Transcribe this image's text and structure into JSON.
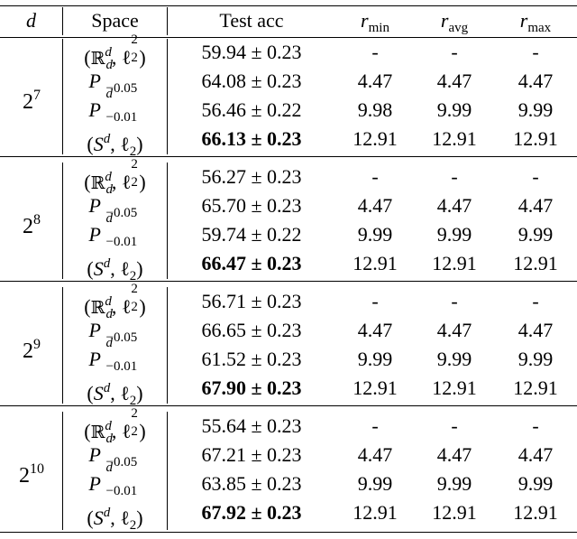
{
  "header": {
    "d": "d",
    "space": "Space",
    "test_acc": "Test acc",
    "r_min": "r",
    "r_min_sub": "min",
    "r_avg": "r",
    "r_avg_sub": "avg",
    "r_max": "r",
    "r_max_sub": "max"
  },
  "spaces": {
    "euclid_open": "(",
    "euclid_R": "ℝ",
    "euclid_d": "d",
    "euclid_sep": ", ℓ",
    "euclid_2": "2",
    "euclid_sq": "2",
    "euclid_close": ")",
    "P": "P",
    "P_sup": "d",
    "P_sub_a": "−0.05",
    "P_sub_b": "−0.01",
    "S_open": "(",
    "S": "S",
    "S_sup": "d",
    "S_sep": ", ℓ",
    "S_sub": "2",
    "S_close": ")"
  },
  "groups": [
    {
      "d_base": "2",
      "d_exp": "7",
      "rows": [
        {
          "acc": "59.94 ± 0.23",
          "rmin": "-",
          "ravg": "-",
          "rmax": "-",
          "bold": false
        },
        {
          "acc": "64.08 ± 0.23",
          "rmin": "4.47",
          "ravg": "4.47",
          "rmax": "4.47",
          "bold": false
        },
        {
          "acc": "56.46 ± 0.22",
          "rmin": "9.98",
          "ravg": "9.99",
          "rmax": "9.99",
          "bold": false
        },
        {
          "acc": "66.13 ± 0.23",
          "rmin": "12.91",
          "ravg": "12.91",
          "rmax": "12.91",
          "bold": true
        }
      ]
    },
    {
      "d_base": "2",
      "d_exp": "8",
      "rows": [
        {
          "acc": "56.27 ± 0.23",
          "rmin": "-",
          "ravg": "-",
          "rmax": "-",
          "bold": false
        },
        {
          "acc": "65.70 ± 0.23",
          "rmin": "4.47",
          "ravg": "4.47",
          "rmax": "4.47",
          "bold": false
        },
        {
          "acc": "59.74 ± 0.22",
          "rmin": "9.99",
          "ravg": "9.99",
          "rmax": "9.99",
          "bold": false
        },
        {
          "acc": "66.47 ± 0.23",
          "rmin": "12.91",
          "ravg": "12.91",
          "rmax": "12.91",
          "bold": true
        }
      ]
    },
    {
      "d_base": "2",
      "d_exp": "9",
      "rows": [
        {
          "acc": "56.71 ± 0.23",
          "rmin": "-",
          "ravg": "-",
          "rmax": "-",
          "bold": false
        },
        {
          "acc": "66.65 ± 0.23",
          "rmin": "4.47",
          "ravg": "4.47",
          "rmax": "4.47",
          "bold": false
        },
        {
          "acc": "61.52 ± 0.23",
          "rmin": "9.99",
          "ravg": "9.99",
          "rmax": "9.99",
          "bold": false
        },
        {
          "acc": "67.90 ± 0.23",
          "rmin": "12.91",
          "ravg": "12.91",
          "rmax": "12.91",
          "bold": true
        }
      ]
    },
    {
      "d_base": "2",
      "d_exp": "10",
      "rows": [
        {
          "acc": "55.64 ± 0.23",
          "rmin": "-",
          "ravg": "-",
          "rmax": "-",
          "bold": false
        },
        {
          "acc": "67.21 ± 0.23",
          "rmin": "4.47",
          "ravg": "4.47",
          "rmax": "4.47",
          "bold": false
        },
        {
          "acc": "63.85 ± 0.23",
          "rmin": "9.99",
          "ravg": "9.99",
          "rmax": "9.99",
          "bold": false
        },
        {
          "acc": "67.92 ± 0.23",
          "rmin": "12.91",
          "ravg": "12.91",
          "rmax": "12.91",
          "bold": true
        }
      ]
    }
  ]
}
